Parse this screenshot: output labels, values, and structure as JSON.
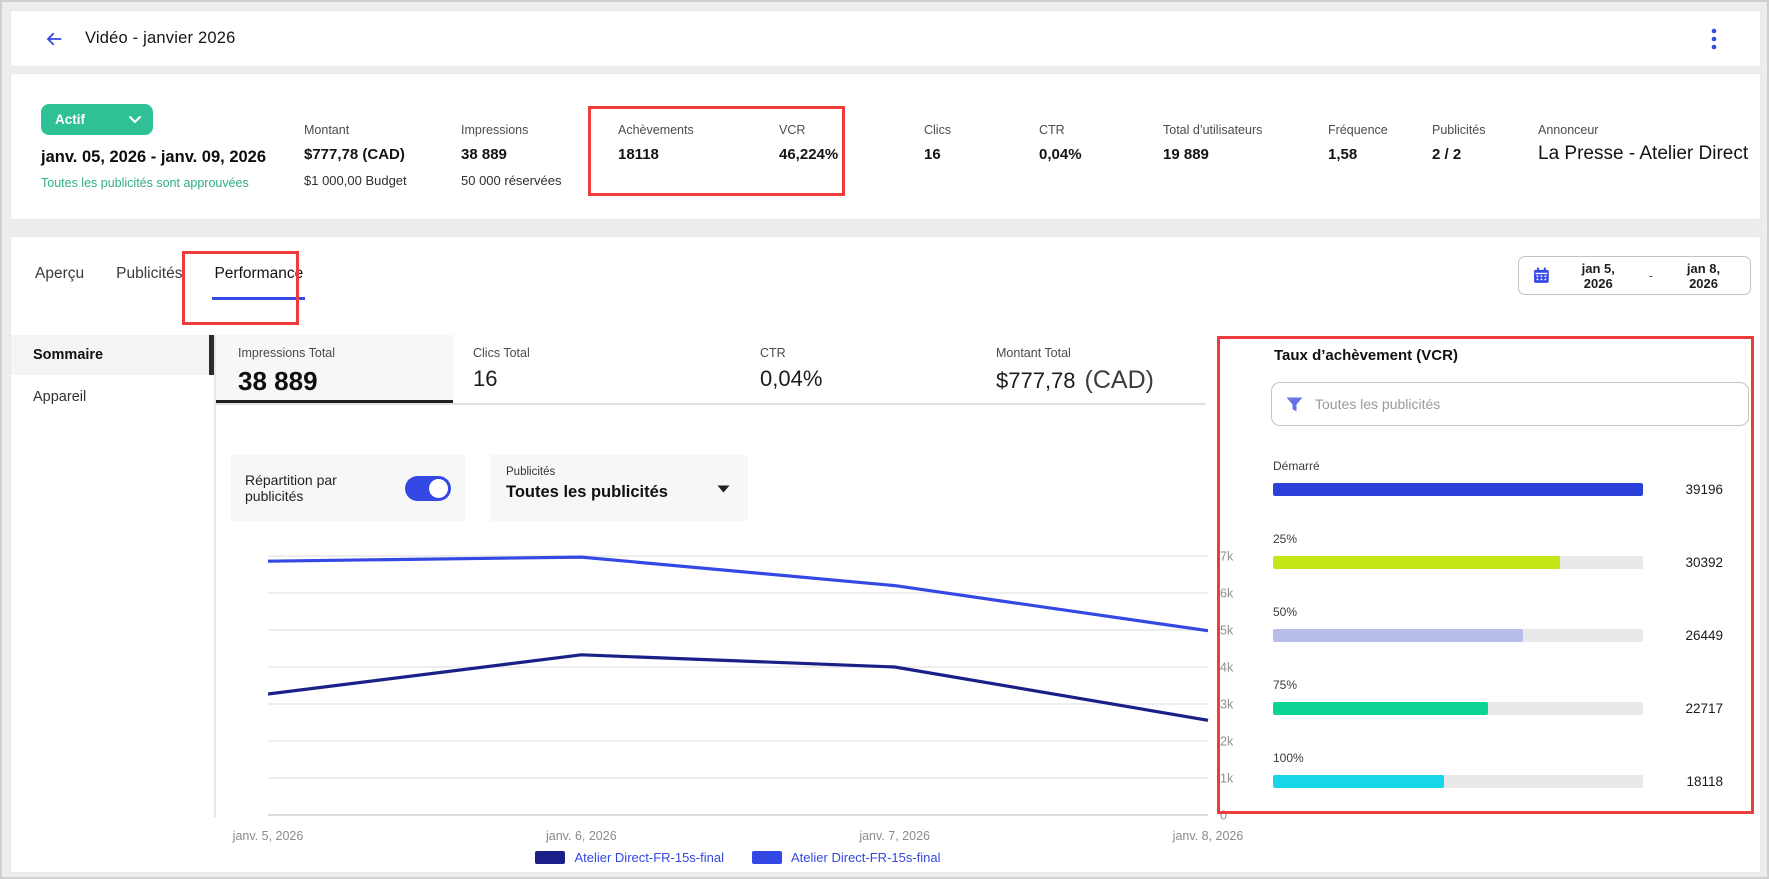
{
  "header": {
    "title": "Vidéo - janvier 2026"
  },
  "icons": {
    "back": "arrow-left",
    "menu": "kebab-vertical",
    "badge_chevron": "chevron-down",
    "calendar": "calendar",
    "dropdown_caret": "caret-down",
    "filter": "funnel"
  },
  "status": {
    "badge_label": "Actif",
    "date_range": "janv. 05, 2026 - janv. 09, 2026",
    "approval_note": "Toutes les publicités sont approuvées"
  },
  "stats": [
    {
      "label": "Montant",
      "value": "$777,78 (CAD)",
      "sub": "$1 000,00 Budget"
    },
    {
      "label": "Impressions",
      "value": "38 889",
      "sub": "50 000 réservées"
    },
    {
      "label": "Achèvements",
      "value": "18118",
      "highlighted": true
    },
    {
      "label": "VCR",
      "value": "46,224%",
      "highlighted": true
    },
    {
      "label": "Clics",
      "value": "16"
    },
    {
      "label": "CTR",
      "value": "0,04%"
    },
    {
      "label": "Total d’utilisateurs",
      "value": "19 889"
    },
    {
      "label": "Fréquence",
      "value": "1,58"
    },
    {
      "label": "Publicités",
      "value": "2 / 2"
    },
    {
      "label": "Annonceur",
      "value": "La Presse - Atelier Direct",
      "wide": true
    }
  ],
  "tabs": [
    {
      "label": "Aperçu",
      "active": false
    },
    {
      "label": "Publicités",
      "active": false
    },
    {
      "label": "Performance",
      "active": true,
      "annotated": true
    }
  ],
  "date_picker": {
    "start": "jan 5, 2026",
    "separator": "-",
    "end": "jan 8, 2026"
  },
  "sidebar": {
    "items": [
      {
        "label": "Sommaire",
        "active": true
      },
      {
        "label": "Appareil",
        "active": false
      }
    ]
  },
  "metric_cards": [
    {
      "label": "Impressions Total",
      "value": "38 889",
      "active": true
    },
    {
      "label": "Clics Total",
      "value": "16"
    },
    {
      "label": "CTR",
      "value": "0,04%"
    },
    {
      "label": "Montant Total",
      "value": "$777,78",
      "suffix": "(CAD)"
    }
  ],
  "controls": {
    "split_toggle_label": "Répartition par publicités",
    "split_toggle_on": true,
    "ads_dropdown_label": "Publicités",
    "ads_dropdown_value": "Toutes les publicités"
  },
  "vcr_panel": {
    "title": "Taux d’achèvement (VCR)",
    "filter_placeholder": "Toutes les publicités",
    "max": 39196,
    "bars": [
      {
        "label": "Démarré",
        "value": 39196,
        "color": "#2b3fd9"
      },
      {
        "label": "25%",
        "value": 30392,
        "color": "#c3e617"
      },
      {
        "label": "50%",
        "value": 26449,
        "color": "#b8bce9"
      },
      {
        "label": "75%",
        "value": 22717,
        "color": "#0cd494"
      },
      {
        "label": "100%",
        "value": 18118,
        "color": "#17d6e8"
      }
    ]
  },
  "chart_data": {
    "type": "line",
    "x": [
      "janv. 5, 2026",
      "janv. 6, 2026",
      "janv. 7, 2026",
      "janv. 8, 2026"
    ],
    "series": [
      {
        "name": "Atelier Direct-FR-15s-final",
        "color": "#1a2088",
        "values": [
          3270,
          4330,
          4000,
          2560
        ]
      },
      {
        "name": "Atelier Direct-FR-15s-final",
        "color": "#3448e3",
        "values": [
          6860,
          6970,
          6200,
          4980
        ]
      }
    ],
    "ylim": [
      0,
      7000
    ],
    "yticks": [
      "0",
      "1k",
      "2k",
      "3k",
      "4k",
      "5k",
      "6k",
      "7k"
    ],
    "grid": true,
    "legend_position": "bottom"
  },
  "colors": {
    "accent_blue": "#3448e3",
    "navy_series": "#1a2088",
    "badge_green": "#2fc196",
    "approval_green": "#2fae85",
    "annotation_red": "#ee3b3b"
  }
}
